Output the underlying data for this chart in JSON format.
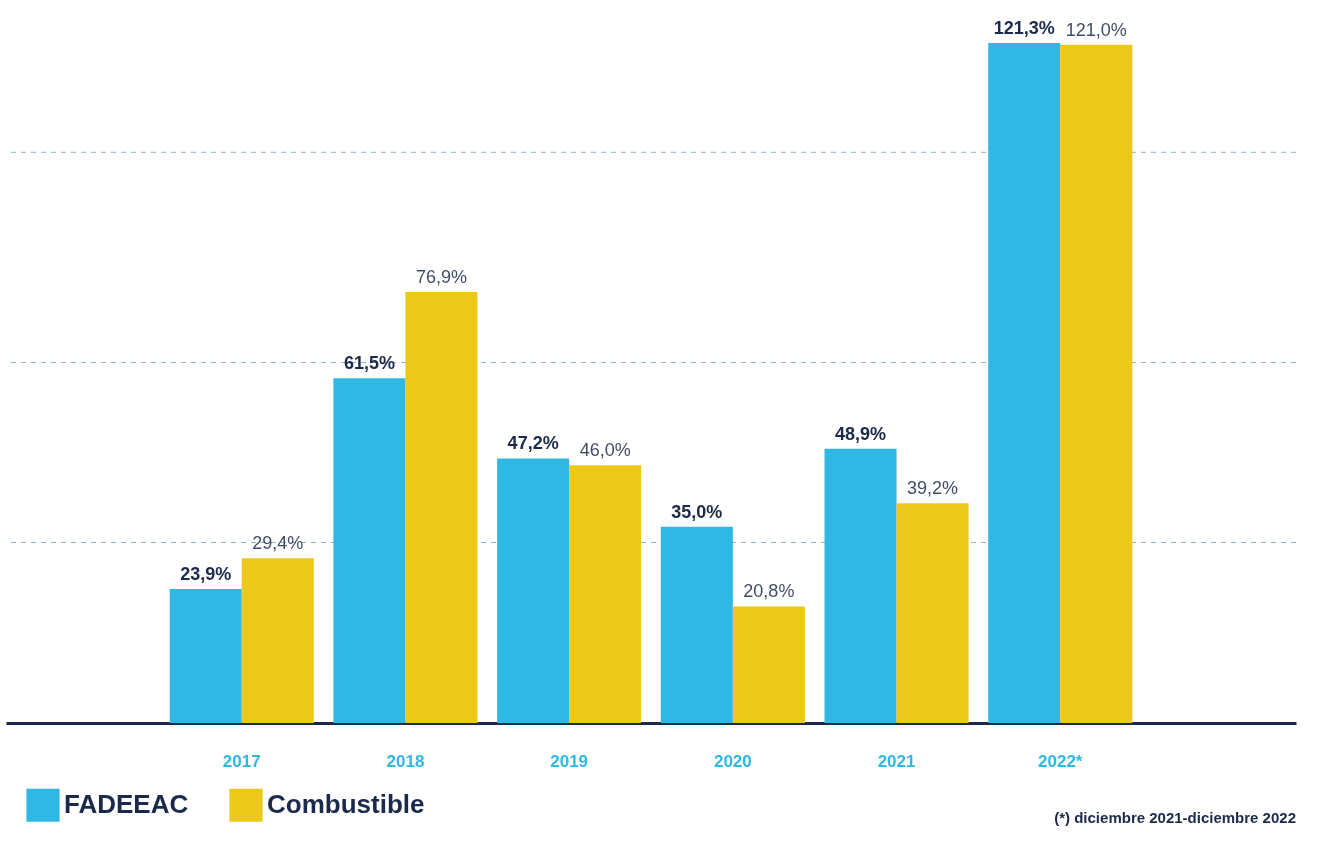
{
  "chart_data": {
    "type": "bar",
    "categories": [
      "2017",
      "2018",
      "2019",
      "2020",
      "2021",
      "2022*"
    ],
    "series": [
      {
        "name": "FADEEAC",
        "color": "#31b7e3",
        "values": [
          23.9,
          61.5,
          47.2,
          35.0,
          48.9,
          121.3
        ],
        "value_labels": [
          "23,9%",
          "61,5%",
          "47,2%",
          "35,0%",
          "48,9%",
          "121,3%"
        ]
      },
      {
        "name": "Combustible",
        "color": "#ecc81a",
        "values": [
          29.4,
          76.9,
          46.0,
          20.8,
          39.2,
          121.0
        ],
        "value_labels": [
          "29,4%",
          "76,9%",
          "46,0%",
          "20,8%",
          "39,2%",
          "121,0%"
        ]
      }
    ],
    "ref_lines": [
      {
        "axis": "y",
        "value": 32.2,
        "color": "#8fb3c8",
        "line_style": "dashed"
      },
      {
        "axis": "y",
        "value": 64.3,
        "color": "#8fb3c8",
        "line_style": "dashed"
      },
      {
        "axis": "y",
        "value": 101.8,
        "color": "#8fb3c8",
        "line_style": "dashed"
      }
    ],
    "tick_labels": "x",
    "legend": "bottom left",
    "annotations": [
      "(*) diciembre 2021-diciembre 2022"
    ]
  }
}
